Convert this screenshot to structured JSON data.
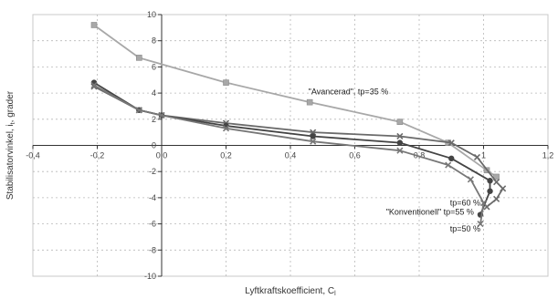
{
  "chart_data": {
    "type": "line",
    "xlabel": "Lyftkraftskoefficient, C",
    "xlabel_subscript": "l",
    "ylabel": "Stabilisatorvinkel, i",
    "ylabel_subscript": "t",
    "ylabel_suffix": ", grader",
    "xlim": [
      -0.4,
      1.2
    ],
    "ylim": [
      -10,
      10
    ],
    "x_ticks": [
      -0.4,
      -0.2,
      0,
      0.2,
      0.4,
      0.6,
      0.8,
      1,
      1.2
    ],
    "x_tick_labels": [
      "-0,4",
      "-0,2",
      "0,0",
      "0,2",
      "0,4",
      "0,6",
      "0,8",
      "1",
      "1,2"
    ],
    "y_ticks": [
      10,
      8,
      6,
      4,
      2,
      0,
      -2,
      -4,
      -6,
      -8,
      -10
    ],
    "y_tick_labels": [
      "10",
      "8",
      "6",
      "4",
      "2",
      "0",
      "-2",
      "-4",
      "-6",
      "-8",
      "-10"
    ],
    "grid": true,
    "series": [
      {
        "key": "avancerad",
        "color": "#a8a8a8",
        "marker": "square",
        "points": [
          [
            -0.21,
            9.2
          ],
          [
            -0.07,
            6.7
          ],
          [
            0.2,
            4.8
          ],
          [
            0.46,
            3.3
          ],
          [
            0.74,
            1.8
          ],
          [
            0.89,
            0.2
          ],
          [
            1.01,
            -1.9
          ],
          [
            1.04,
            -2.4
          ]
        ]
      },
      {
        "key": "tp60",
        "color": "#6a6a6a",
        "marker": "x",
        "points": [
          [
            -0.21,
            4.5
          ],
          [
            -0.07,
            2.7
          ],
          [
            0,
            2.3
          ],
          [
            0.2,
            1.7
          ],
          [
            0.47,
            1.0
          ],
          [
            0.74,
            0.7
          ],
          [
            0.9,
            0.2
          ],
          [
            0.98,
            -0.9
          ],
          [
            1.04,
            -2.8
          ],
          [
            1.06,
            -3.3
          ],
          [
            1.04,
            -4.1
          ],
          [
            1.01,
            -4.7
          ]
        ]
      },
      {
        "key": "konventionell",
        "color": "#444444",
        "marker": "circle",
        "points": [
          [
            -0.21,
            4.8
          ],
          [
            -0.07,
            2.7
          ],
          [
            0,
            2.3
          ],
          [
            0.2,
            1.5
          ],
          [
            0.47,
            0.7
          ],
          [
            0.74,
            0.2
          ],
          [
            0.9,
            -1.0
          ],
          [
            1.02,
            -2.7
          ],
          [
            1.02,
            -3.5
          ],
          [
            0.99,
            -5.3
          ]
        ]
      },
      {
        "key": "tp50",
        "color": "#777777",
        "marker": "x",
        "points": [
          [
            -0.21,
            4.6
          ],
          [
            -0.07,
            2.7
          ],
          [
            0,
            2.3
          ],
          [
            0.2,
            1.3
          ],
          [
            0.47,
            0.3
          ],
          [
            0.74,
            -0.4
          ],
          [
            0.89,
            -1.5
          ],
          [
            0.96,
            -2.6
          ],
          [
            1.0,
            -4.4
          ],
          [
            0.99,
            -6.0
          ]
        ]
      }
    ],
    "annotations": [
      {
        "text": "\"Avancerad\", tp=35 %",
        "x": 0.58,
        "y": 3.9,
        "anchor": "middle"
      },
      {
        "text": "tp=60 %",
        "x": 0.99,
        "y": -4.6,
        "anchor": "end"
      },
      {
        "text": "\"Konventionell\"  tp=55 %",
        "x": 0.97,
        "y": -5.3,
        "anchor": "end"
      },
      {
        "text": "tp=50 %",
        "x": 0.99,
        "y": -6.6,
        "anchor": "end"
      }
    ]
  }
}
